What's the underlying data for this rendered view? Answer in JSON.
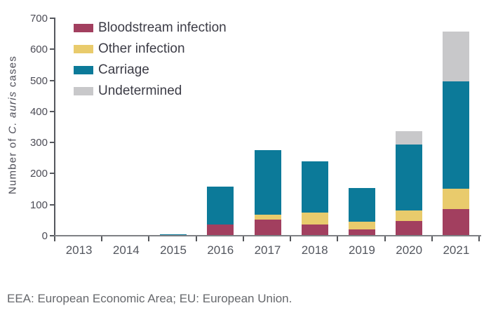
{
  "chart_data": {
    "type": "bar",
    "stacked": true,
    "categories": [
      "2013",
      "2014",
      "2015",
      "2016",
      "2017",
      "2018",
      "2019",
      "2020",
      "2021"
    ],
    "series": [
      {
        "name": "Bloodstream infection",
        "color": "#a23f5f",
        "values": [
          0,
          0,
          0,
          33,
          49,
          34,
          18,
          46,
          84
        ]
      },
      {
        "name": "Other infection",
        "color": "#e9cb6c",
        "values": [
          0,
          0,
          0,
          0,
          17,
          39,
          26,
          34,
          66
        ]
      },
      {
        "name": "Carriage",
        "color": "#0c7a99",
        "values": [
          0,
          0,
          3,
          123,
          207,
          163,
          107,
          211,
          345
        ]
      },
      {
        "name": "Undetermined",
        "color": "#c8c8ca",
        "values": [
          0,
          0,
          0,
          0,
          0,
          0,
          0,
          44,
          160
        ]
      }
    ],
    "totals": [
      0,
      0,
      3,
      156,
      273,
      236,
      151,
      335,
      655
    ],
    "title": "",
    "xlabel": "",
    "ylabel": "Number of C. auris cases",
    "ylabel_parts": {
      "prefix": "Number of ",
      "italic": "C. auris",
      "suffix": " cases"
    },
    "ylim": [
      0,
      700
    ],
    "ytick_step": 100,
    "yticks": [
      "0",
      "100",
      "200",
      "300",
      "400",
      "500",
      "600",
      "700"
    ],
    "grid": false,
    "legend_position": "top-left-inside"
  },
  "footnote": "EEA: European Economic Area; EU: European Union."
}
